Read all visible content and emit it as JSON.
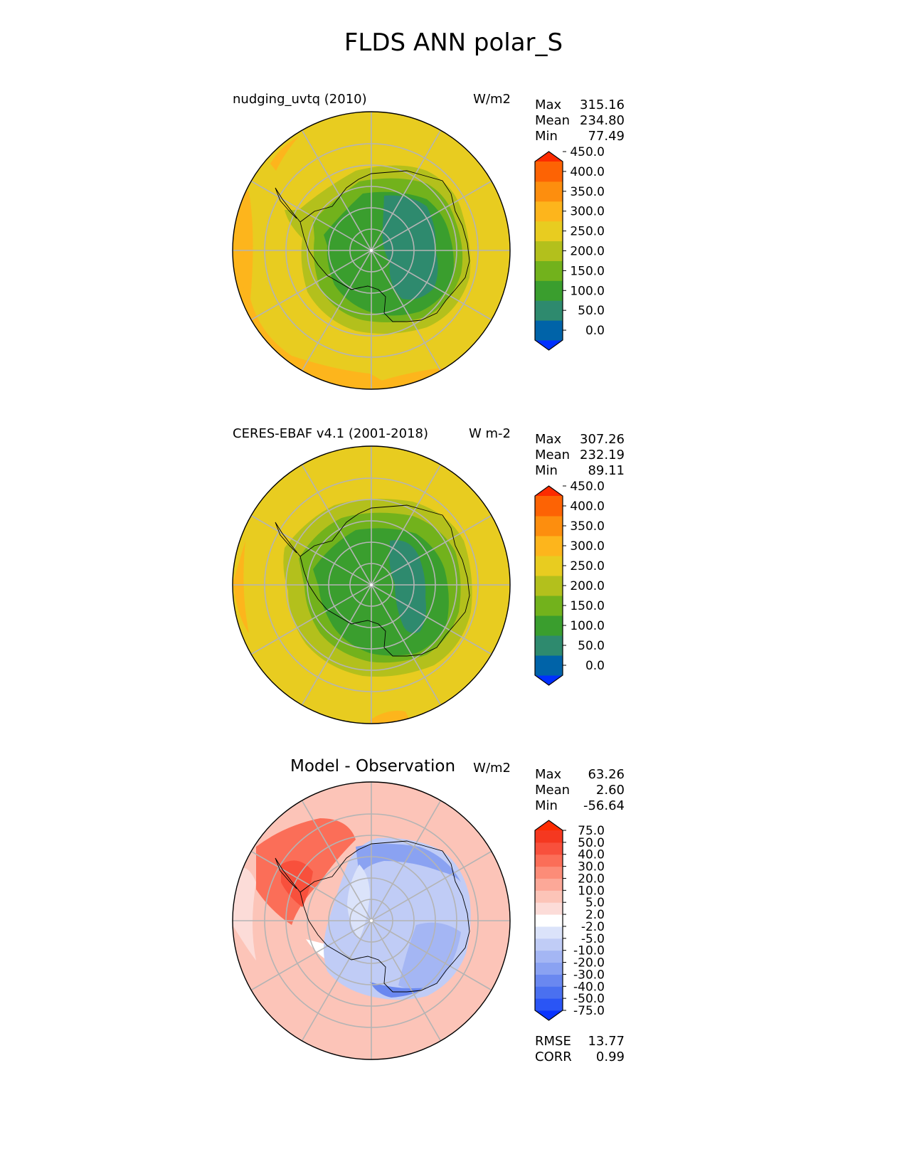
{
  "title": "FLDS ANN polar_S",
  "panels": [
    {
      "id": "test",
      "label": "nudging_uvtq (2010)",
      "units": "W/m2",
      "stats": [
        {
          "name": "Max",
          "value": "315.16"
        },
        {
          "name": "Mean",
          "value": "234.80"
        },
        {
          "name": "Min",
          "value": "77.49"
        }
      ],
      "colorbar": {
        "levels": [
          "0.0",
          "50.0",
          "100.0",
          "150.0",
          "200.0",
          "250.0",
          "300.0",
          "350.0",
          "400.0",
          "450.0"
        ],
        "colors": [
          "#0030ff",
          "#0063a8",
          "#2e8a6e",
          "#3a9e2e",
          "#72b21c",
          "#b3c01c",
          "#e8cc20",
          "#fdb51c",
          "#fd8e0e",
          "#fd6304",
          "#fd2b00"
        ]
      }
    },
    {
      "id": "ref",
      "label": "CERES-EBAF v4.1 (2001-2018)",
      "units": "W m-2",
      "stats": [
        {
          "name": "Max",
          "value": "307.26"
        },
        {
          "name": "Mean",
          "value": "232.19"
        },
        {
          "name": "Min",
          "value": "89.11"
        }
      ],
      "colorbar": {
        "levels": [
          "0.0",
          "50.0",
          "100.0",
          "150.0",
          "200.0",
          "250.0",
          "300.0",
          "350.0",
          "400.0",
          "450.0"
        ],
        "colors": [
          "#0030ff",
          "#0063a8",
          "#2e8a6e",
          "#3a9e2e",
          "#72b21c",
          "#b3c01c",
          "#e8cc20",
          "#fdb51c",
          "#fd8e0e",
          "#fd6304",
          "#fd2b00"
        ]
      }
    },
    {
      "id": "diff",
      "title": "Model - Observation",
      "units": "W/m2",
      "stats": [
        {
          "name": "Max",
          "value": "63.26"
        },
        {
          "name": "Mean",
          "value": "2.60"
        },
        {
          "name": "Min",
          "value": "-56.64"
        }
      ],
      "metrics": [
        {
          "name": "RMSE",
          "value": "13.77"
        },
        {
          "name": "CORR",
          "value": "0.99"
        }
      ],
      "colorbar": {
        "levels": [
          "-75.0",
          "-50.0",
          "-40.0",
          "-30.0",
          "-20.0",
          "-10.0",
          "-5.0",
          "-2.0",
          "2.0",
          "5.0",
          "10.0",
          "20.0",
          "30.0",
          "40.0",
          "50.0",
          "75.0"
        ],
        "colors": [
          "#0a34ff",
          "#2a55f5",
          "#4a70f0",
          "#6a88f0",
          "#8aa2f2",
          "#a4b6f4",
          "#c0ccf6",
          "#dbe3fa",
          "#ffffff",
          "#fcdcd8",
          "#fcc4b8",
          "#fca898",
          "#fc8c78",
          "#fb6e58",
          "#f8503c",
          "#f53820",
          "#fd2b00"
        ]
      }
    }
  ],
  "chart_data": [
    {
      "type": "heatmap",
      "projection": "south-polar-stereographic",
      "title": "nudging_uvtq (2010)",
      "units": "W/m2",
      "colorbar_levels": [
        0,
        50,
        100,
        150,
        200,
        250,
        300,
        350,
        400,
        450
      ],
      "max": 315.16,
      "mean": 234.8,
      "min": 77.49
    },
    {
      "type": "heatmap",
      "projection": "south-polar-stereographic",
      "title": "CERES-EBAF v4.1 (2001-2018)",
      "units": "W m-2",
      "colorbar_levels": [
        0,
        50,
        100,
        150,
        200,
        250,
        300,
        350,
        400,
        450
      ],
      "max": 307.26,
      "mean": 232.19,
      "min": 89.11
    },
    {
      "type": "heatmap",
      "projection": "south-polar-stereographic",
      "title": "Model - Observation",
      "units": "W/m2",
      "colorbar_levels": [
        -75,
        -50,
        -40,
        -30,
        -20,
        -10,
        -5,
        -2,
        2,
        5,
        10,
        20,
        30,
        40,
        50,
        75
      ],
      "max": 63.26,
      "mean": 2.6,
      "min": -56.64,
      "rmse": 13.77,
      "corr": 0.99
    }
  ]
}
